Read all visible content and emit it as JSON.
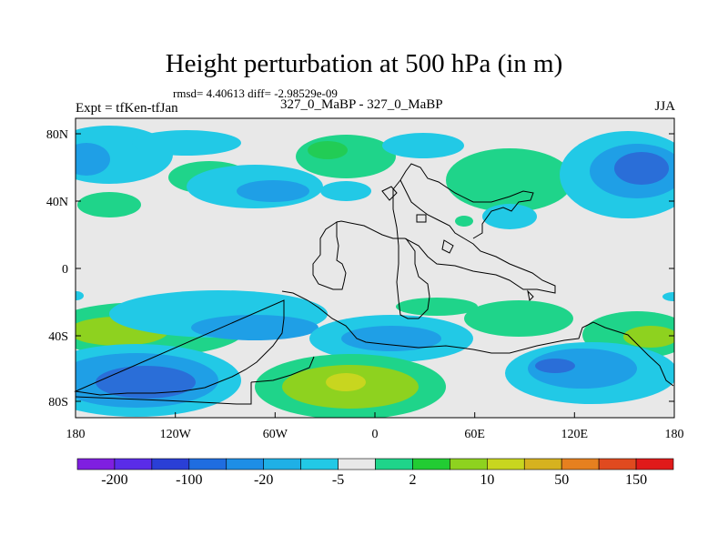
{
  "figure": {
    "title": "Height perturbation at 500 hPa (in m)",
    "stats": "rmsd= 4.40613 diff= -2.98529e-09",
    "experiment": "Expt = tfKen-tfJan",
    "subtitle": "327_0_MaBP - 327_0_MaBP",
    "season": "JJA"
  },
  "axes": {
    "lat_ticks": [
      "80N",
      "40N",
      "0",
      "40S",
      "80S"
    ],
    "lon_ticks": [
      "180",
      "120W",
      "60W",
      "0",
      "60E",
      "120E",
      "180"
    ]
  },
  "colorbar": {
    "labels": [
      "-200",
      "-100",
      "-20",
      "-5",
      "2",
      "10",
      "50",
      "150"
    ],
    "colors": [
      "#7f1fe0",
      "#5a2ce8",
      "#2a3fd6",
      "#1f6de0",
      "#1e8ee6",
      "#1fb0e6",
      "#22c9e6",
      "#e8e8e8",
      "#1fd48a",
      "#22cc33",
      "#8ed21f",
      "#c8d61f",
      "#d6b21f",
      "#e6801f",
      "#e04a1f",
      "#e01a1a"
    ]
  },
  "palette": {
    "background": "#e8e8e8",
    "neg_strong": "#2a6ed8",
    "neg_medium": "#1fa0e6",
    "neg_weak": "#22c9e6",
    "pos_weak": "#1fd48a",
    "pos_medium": "#55cc22",
    "pos_strong": "#b8d61f"
  }
}
